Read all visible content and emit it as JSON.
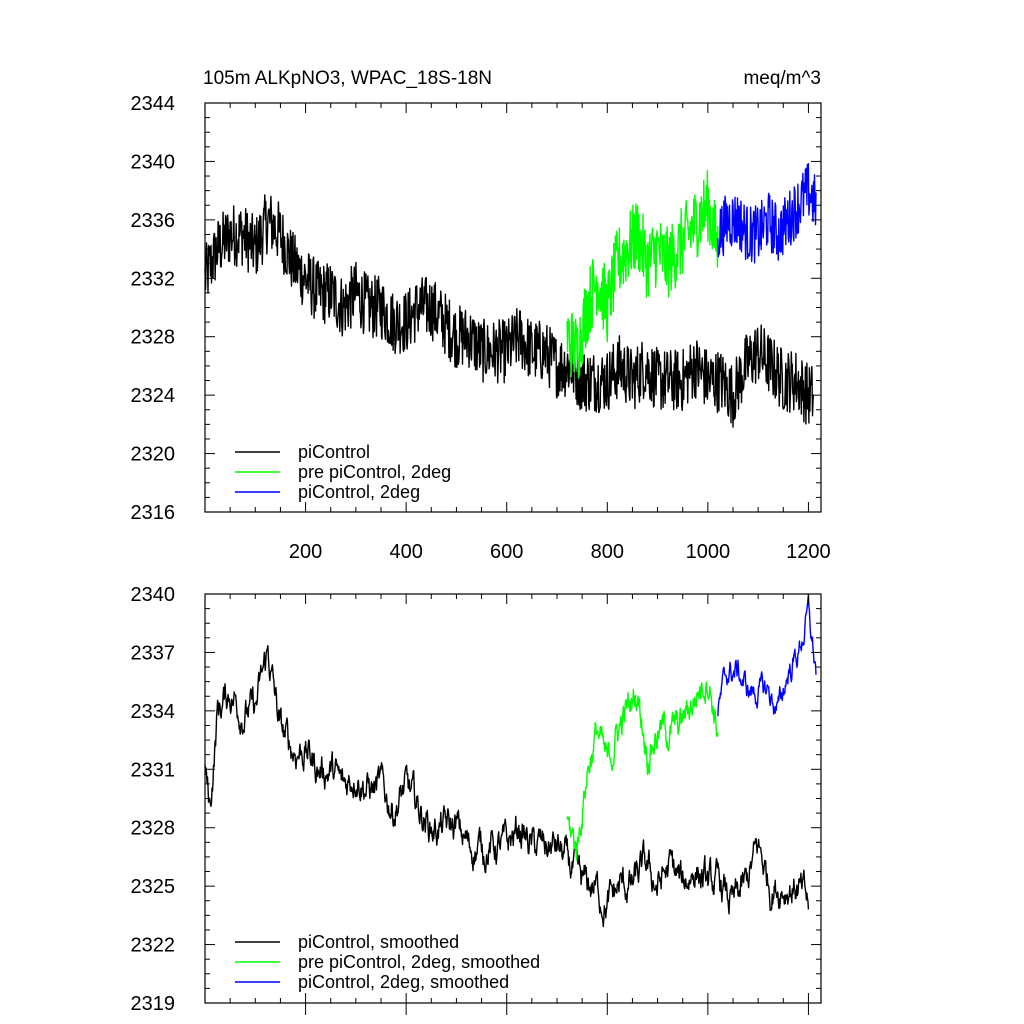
{
  "chart_data": [
    {
      "type": "line",
      "title": "105m ALKpNO3, WPAC_18S-18N",
      "units": "meq/m^3",
      "xlim": [
        0,
        1225
      ],
      "ylim": [
        2316,
        2344
      ],
      "xticks": [
        200,
        400,
        600,
        800,
        1000,
        1200
      ],
      "yticks": [
        2316,
        2320,
        2324,
        2328,
        2332,
        2336,
        2340,
        2344
      ],
      "grid": false,
      "legend_position": "bottom-left",
      "series": [
        {
          "name": "piControl",
          "color": "#000000",
          "x": [
            0,
            25,
            50,
            75,
            100,
            125,
            150,
            175,
            200,
            225,
            250,
            275,
            300,
            325,
            350,
            375,
            400,
            425,
            450,
            475,
            500,
            525,
            550,
            575,
            600,
            625,
            650,
            675,
            700,
            725,
            750,
            775,
            800,
            825,
            850,
            875,
            900,
            925,
            950,
            975,
            1000,
            1025,
            1050,
            1075,
            1100,
            1125,
            1150,
            1175,
            1200,
            1210
          ],
          "y": [
            2332,
            2334,
            2335,
            2335,
            2334,
            2336,
            2335,
            2333,
            2332,
            2331,
            2331,
            2330,
            2331,
            2330,
            2330,
            2329,
            2329,
            2330,
            2330,
            2329,
            2328,
            2328,
            2327,
            2327,
            2327,
            2328,
            2327,
            2327,
            2326,
            2326,
            2325,
            2325,
            2325,
            2326,
            2325,
            2326,
            2325,
            2325,
            2325,
            2326,
            2325,
            2325,
            2324,
            2326,
            2327,
            2326,
            2325,
            2325,
            2324,
            2324
          ],
          "noise": 2.2
        },
        {
          "name": "pre piControl, 2deg",
          "color": "#00ff00",
          "x": [
            720,
            740,
            760,
            780,
            800,
            820,
            840,
            860,
            880,
            900,
            920,
            940,
            960,
            980,
            1000,
            1020
          ],
          "y": [
            2328,
            2327,
            2330,
            2332,
            2330,
            2333,
            2334,
            2335,
            2333,
            2334,
            2333,
            2334,
            2335,
            2336,
            2337,
            2334
          ],
          "noise": 2.5
        },
        {
          "name": "piControl, 2deg",
          "color": "#0000ff",
          "x": [
            1020,
            1040,
            1060,
            1080,
            1100,
            1120,
            1140,
            1160,
            1180,
            1200,
            1215
          ],
          "y": [
            2335,
            2336,
            2336,
            2335,
            2335,
            2336,
            2335,
            2336,
            2337,
            2338,
            2337
          ],
          "noise": 2.0
        }
      ]
    },
    {
      "type": "line",
      "title": "",
      "xlim": [
        0,
        1225
      ],
      "ylim": [
        2319,
        2340
      ],
      "xticks": [
        200,
        400,
        600,
        800,
        1000,
        1200
      ],
      "yticks": [
        2319,
        2322,
        2325,
        2328,
        2331,
        2334,
        2337,
        2340
      ],
      "grid": false,
      "legend_position": "bottom-left",
      "series": [
        {
          "name": "piControl, smoothed",
          "color": "#000000",
          "x": [
            0,
            10,
            25,
            50,
            75,
            100,
            125,
            150,
            175,
            200,
            225,
            250,
            275,
            300,
            325,
            350,
            375,
            400,
            425,
            450,
            475,
            500,
            525,
            550,
            575,
            600,
            625,
            650,
            675,
            700,
            725,
            750,
            775,
            800,
            825,
            850,
            875,
            900,
            925,
            950,
            975,
            1000,
            1025,
            1050,
            1075,
            1100,
            1125,
            1150,
            1175,
            1200
          ],
          "y": [
            2331,
            2329,
            2334,
            2335,
            2334,
            2334,
            2337,
            2333,
            2332,
            2332,
            2331,
            2331,
            2330,
            2331,
            2330,
            2330,
            2329,
            2330,
            2329,
            2328,
            2328,
            2328,
            2327,
            2327,
            2327,
            2327,
            2328,
            2327,
            2327,
            2327,
            2326,
            2325,
            2325,
            2324,
            2325,
            2325,
            2326,
            2325,
            2326,
            2325,
            2326,
            2325,
            2325,
            2324,
            2325,
            2327,
            2325,
            2325,
            2325,
            2324
          ],
          "noise": 1.3
        },
        {
          "name": "pre piControl, 2deg, smoothed",
          "color": "#00ff00",
          "x": [
            720,
            740,
            760,
            780,
            800,
            820,
            840,
            860,
            880,
            900,
            920,
            940,
            960,
            980,
            1000,
            1020
          ],
          "y": [
            2328,
            2327,
            2331,
            2333,
            2331,
            2333,
            2334,
            2335,
            2332,
            2333,
            2333,
            2333,
            2334,
            2335,
            2336,
            2333
          ],
          "noise": 1.3
        },
        {
          "name": "piControl, 2deg, smoothed",
          "color": "#0000ff",
          "x": [
            1020,
            1040,
            1060,
            1080,
            1100,
            1120,
            1140,
            1160,
            1180,
            1200,
            1215
          ],
          "y": [
            2334,
            2336,
            2336,
            2335,
            2335,
            2335,
            2334,
            2336,
            2337,
            2339,
            2336
          ],
          "noise": 1.0
        }
      ]
    }
  ]
}
